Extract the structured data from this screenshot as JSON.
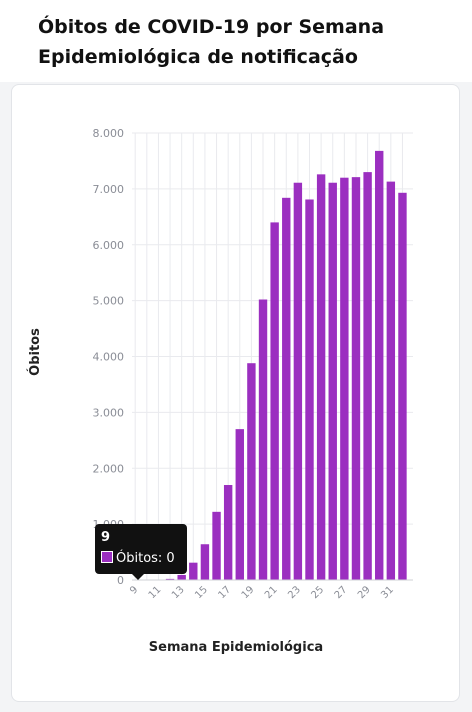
{
  "header": {
    "title": "Óbitos de COVID-19 por Semana Epidemiológica de notificação"
  },
  "colors": {
    "bar": "#9b2fc0",
    "grid": "#e9eaee",
    "tick_text": "#8a8d96",
    "axis_label": "#222222"
  },
  "chart_data": {
    "type": "bar",
    "xlabel": "Semana Epidemiológica",
    "ylabel": "Óbitos",
    "ylim": [
      0,
      8000
    ],
    "y_ticks": [
      "0",
      "1.000",
      "2.000",
      "3.000",
      "4.000",
      "5.000",
      "6.000",
      "7.000",
      "8.000"
    ],
    "x_tick_labels": [
      "9",
      "11",
      "13",
      "15",
      "17",
      "19",
      "21",
      "23",
      "25",
      "27",
      "29",
      "31"
    ],
    "grid": true,
    "categories": [
      9,
      10,
      11,
      12,
      13,
      14,
      15,
      16,
      17,
      18,
      19,
      20,
      21,
      22,
      23,
      24,
      25,
      26,
      27,
      28,
      29,
      30,
      31,
      32
    ],
    "series": [
      {
        "name": "Óbitos",
        "values": [
          0,
          0,
          0,
          20,
          90,
          310,
          640,
          1220,
          1700,
          2700,
          3880,
          5020,
          6400,
          6840,
          7110,
          6810,
          7260,
          7110,
          7200,
          7210,
          7300,
          7680,
          7130,
          6930
        ]
      }
    ]
  },
  "tooltip": {
    "title": "9",
    "label": "Óbitos: 0"
  }
}
